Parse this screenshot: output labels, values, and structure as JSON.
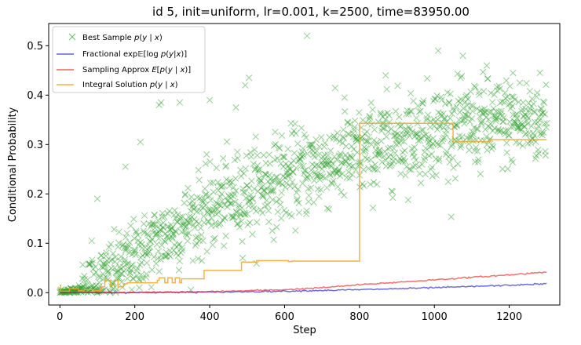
{
  "chart_data": {
    "type": "scatter",
    "title": "id 5, init=uniform, lr=0.001, k=2500, time=83950.00",
    "xlabel": "Step",
    "ylabel": "Conditional Probability",
    "xlim": [
      -30,
      1335
    ],
    "ylim": [
      -0.025,
      0.545
    ],
    "xticks": [
      0,
      200,
      400,
      600,
      800,
      1000,
      1200
    ],
    "yticks": [
      0.0,
      0.1,
      0.2,
      0.3,
      0.4,
      0.5
    ],
    "xtick_labels": [
      "0",
      "200",
      "400",
      "600",
      "800",
      "1000",
      "1200"
    ],
    "ytick_labels": [
      "0.0",
      "0.1",
      "0.2",
      "0.3",
      "0.4",
      "0.5"
    ],
    "grid": false,
    "legend_position": "top-left",
    "series": [
      {
        "name": "Best Sample p(y | x)",
        "kind": "scatter",
        "marker": "x",
        "color": "#2ca02c",
        "trend": {
          "x": [
            0,
            80,
            150,
            250,
            400,
            550,
            700,
            800,
            900,
            1000,
            1100,
            1200,
            1300
          ],
          "y": [
            0.0,
            0.01,
            0.045,
            0.1,
            0.17,
            0.22,
            0.26,
            0.28,
            0.31,
            0.33,
            0.34,
            0.345,
            0.35
          ]
        },
        "outliers": [
          {
            "x": 85,
            "y": 0.105
          },
          {
            "x": 100,
            "y": 0.19
          },
          {
            "x": 175,
            "y": 0.255
          },
          {
            "x": 215,
            "y": 0.305
          },
          {
            "x": 265,
            "y": 0.38
          },
          {
            "x": 270,
            "y": 0.385
          },
          {
            "x": 320,
            "y": 0.385
          },
          {
            "x": 400,
            "y": 0.39
          },
          {
            "x": 470,
            "y": 0.375
          },
          {
            "x": 495,
            "y": 0.42
          },
          {
            "x": 505,
            "y": 0.435
          },
          {
            "x": 660,
            "y": 0.52
          },
          {
            "x": 760,
            "y": 0.395
          },
          {
            "x": 870,
            "y": 0.44
          },
          {
            "x": 1010,
            "y": 0.49
          },
          {
            "x": 1070,
            "y": 0.435
          },
          {
            "x": 1140,
            "y": 0.46
          },
          {
            "x": 1210,
            "y": 0.445
          }
        ]
      },
      {
        "name": "Fractional exp E[log p(y|x)]",
        "kind": "line",
        "color": "#1f1fd0",
        "x": [
          0,
          200,
          400,
          600,
          800,
          1000,
          1200,
          1300
        ],
        "y": [
          0.0,
          0.0002,
          0.001,
          0.003,
          0.006,
          0.01,
          0.015,
          0.018
        ]
      },
      {
        "name": "Sampling Approx E[p(y | x)]",
        "kind": "line",
        "color": "#ee2222",
        "x": [
          0,
          200,
          400,
          600,
          700,
          800,
          900,
          1000,
          1100,
          1200,
          1300
        ],
        "y": [
          0.0,
          0.0005,
          0.002,
          0.006,
          0.01,
          0.016,
          0.021,
          0.026,
          0.031,
          0.036,
          0.042
        ]
      },
      {
        "name": "Integral Solution p(y | x)",
        "kind": "step",
        "color": "#f5a623",
        "x": [
          0,
          2,
          25,
          50,
          65,
          90,
          110,
          120,
          135,
          145,
          155,
          170,
          180,
          260,
          265,
          280,
          288,
          300,
          308,
          320,
          325,
          385,
          485,
          525,
          610,
          620,
          800,
          1050,
          1060,
          1150,
          1300
        ],
        "y": [
          0.015,
          0.003,
          0.008,
          0.004,
          0.006,
          0.004,
          0.012,
          0.025,
          0.015,
          0.025,
          0.012,
          0.018,
          0.02,
          0.025,
          0.03,
          0.02,
          0.03,
          0.02,
          0.03,
          0.02,
          0.028,
          0.045,
          0.062,
          0.065,
          0.063,
          0.064,
          0.343,
          0.305,
          0.306,
          0.31,
          0.31
        ]
      }
    ]
  }
}
